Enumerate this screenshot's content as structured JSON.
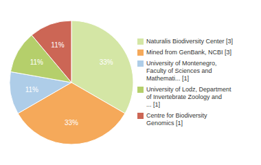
{
  "chart_data": {
    "type": "pie",
    "categories": [
      "Naturalis Biodiversity Center [3]",
      "Mined from GenBank, NCBI [3]",
      "University of Montenegro,\nFaculty of Sciences and\nMathemati... [1]",
      "University of Lodz, Department\nof Invertebrate Zoology and\n... [1]",
      "Centre for Biodiversity\nGenomics [1]"
    ],
    "values": [
      33,
      33,
      11,
      11,
      11
    ],
    "value_labels": [
      "33%",
      "33%",
      "11%",
      "11%",
      "11%"
    ],
    "colors": [
      "#d4e6a5",
      "#f5a95a",
      "#aecde8",
      "#b5cf6b",
      "#cc6655"
    ],
    "data_labels": true,
    "legend": "right"
  }
}
